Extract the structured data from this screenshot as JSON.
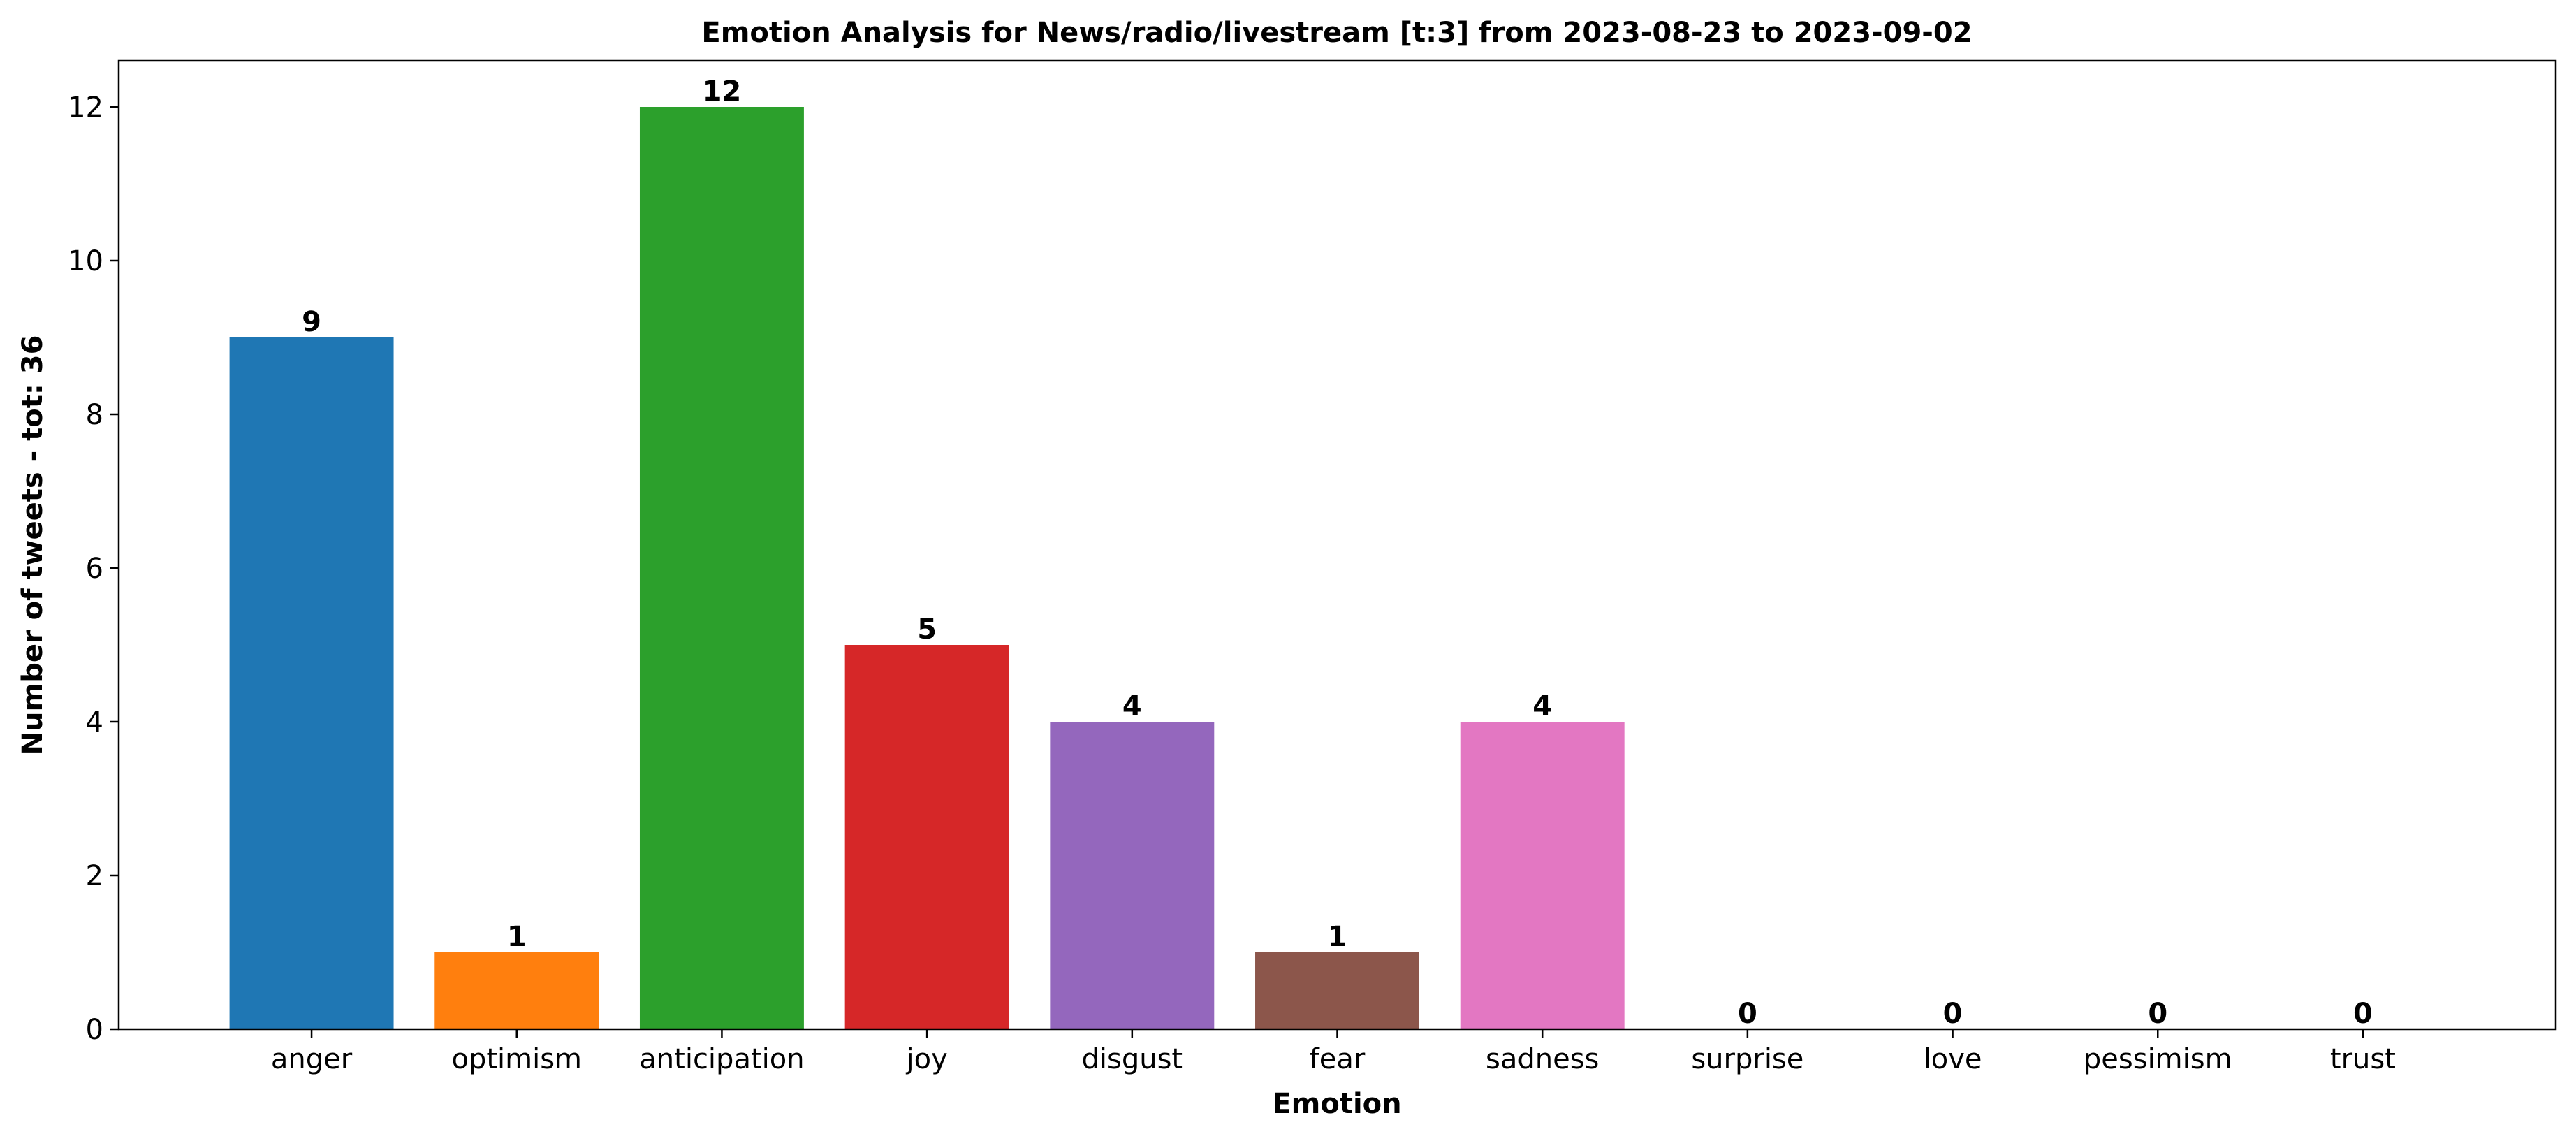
{
  "chart_data": {
    "type": "bar",
    "title": "Emotion Analysis for News/radio/livestream [t:3] from 2023-08-23 to 2023-09-02",
    "xlabel": "Emotion",
    "ylabel": "Number of tweets - tot: 36",
    "categories": [
      "anger",
      "optimism",
      "anticipation",
      "joy",
      "disgust",
      "fear",
      "sadness",
      "surprise",
      "love",
      "pessimism",
      "trust"
    ],
    "values": [
      9,
      1,
      12,
      5,
      4,
      1,
      4,
      0,
      0,
      0,
      0
    ],
    "colors": [
      "#1f77b4",
      "#ff7f0e",
      "#2ca02c",
      "#d62728",
      "#9467bd",
      "#8c564b",
      "#e377c2",
      "#7f7f7f",
      "#bcbd22",
      "#17becf",
      "#1f77b4"
    ],
    "yticks": [
      0,
      2,
      4,
      6,
      8,
      10,
      12
    ],
    "ylim": [
      0,
      12.6
    ],
    "grid": false,
    "legend": "none"
  }
}
